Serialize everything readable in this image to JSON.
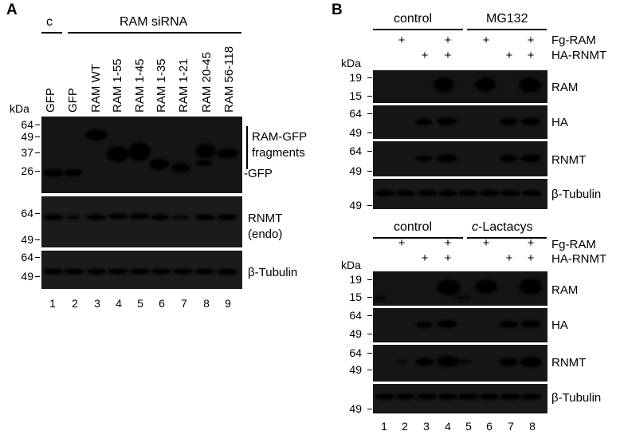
{
  "panel_a": {
    "letter": "A",
    "group_c": "c",
    "group_siRNA": "RAM siRNA",
    "kda": "kDa",
    "lane_labels": [
      "GFP",
      "GFP",
      "RAM WT",
      "RAM 1-55",
      "RAM 1-45",
      "RAM 1-35",
      "RAM 1-21",
      "RAM 20-45",
      "RAM 56-118"
    ],
    "markers_top": [
      "64",
      "49",
      "37",
      "26"
    ],
    "markers_mid": [
      "64",
      "49"
    ],
    "markers_bot": [
      "64",
      "49"
    ],
    "right_labels": {
      "fragments_1": "RAM-GFP",
      "fragments_2": "fragments",
      "gfp": "-GFP",
      "rnmt": "RNMT",
      "endo": "(endo)",
      "tubulin": "β-Tubulin"
    },
    "lane_numbers": [
      "1",
      "2",
      "3",
      "4",
      "5",
      "6",
      "7",
      "8",
      "9"
    ]
  },
  "panel_b": {
    "letter": "B",
    "top": {
      "group1": "control",
      "group2": "MG132",
      "row1_label": "Fg-RAM",
      "row2_label": "HA-RNMT",
      "plus": "+",
      "kda": "kDa",
      "markers_ram": [
        "19",
        "15"
      ],
      "markers_ha": [
        "64",
        "49"
      ],
      "markers_rnmt": [
        "64",
        "49"
      ],
      "markers_tub": [
        "49"
      ],
      "blot_labels": [
        "RAM",
        "HA",
        "RNMT",
        "β-Tubulin"
      ]
    },
    "bottom": {
      "group1": "control",
      "group2_italic": "c",
      "group2_rest": "-Lactacys",
      "row1_label": "Fg-RAM",
      "row2_label": "HA-RNMT",
      "plus": "+",
      "kda": "kDa",
      "markers_ram": [
        "19",
        "15"
      ],
      "markers_ha": [
        "64",
        "49"
      ],
      "markers_rnmt": [
        "64",
        "49"
      ],
      "markers_tub": [
        "49"
      ],
      "blot_labels": [
        "RAM",
        "HA",
        "RNMT",
        "β-Tubulin"
      ]
    },
    "lane_numbers": [
      "1",
      "2",
      "3",
      "4",
      "5",
      "6",
      "7",
      "8"
    ]
  }
}
